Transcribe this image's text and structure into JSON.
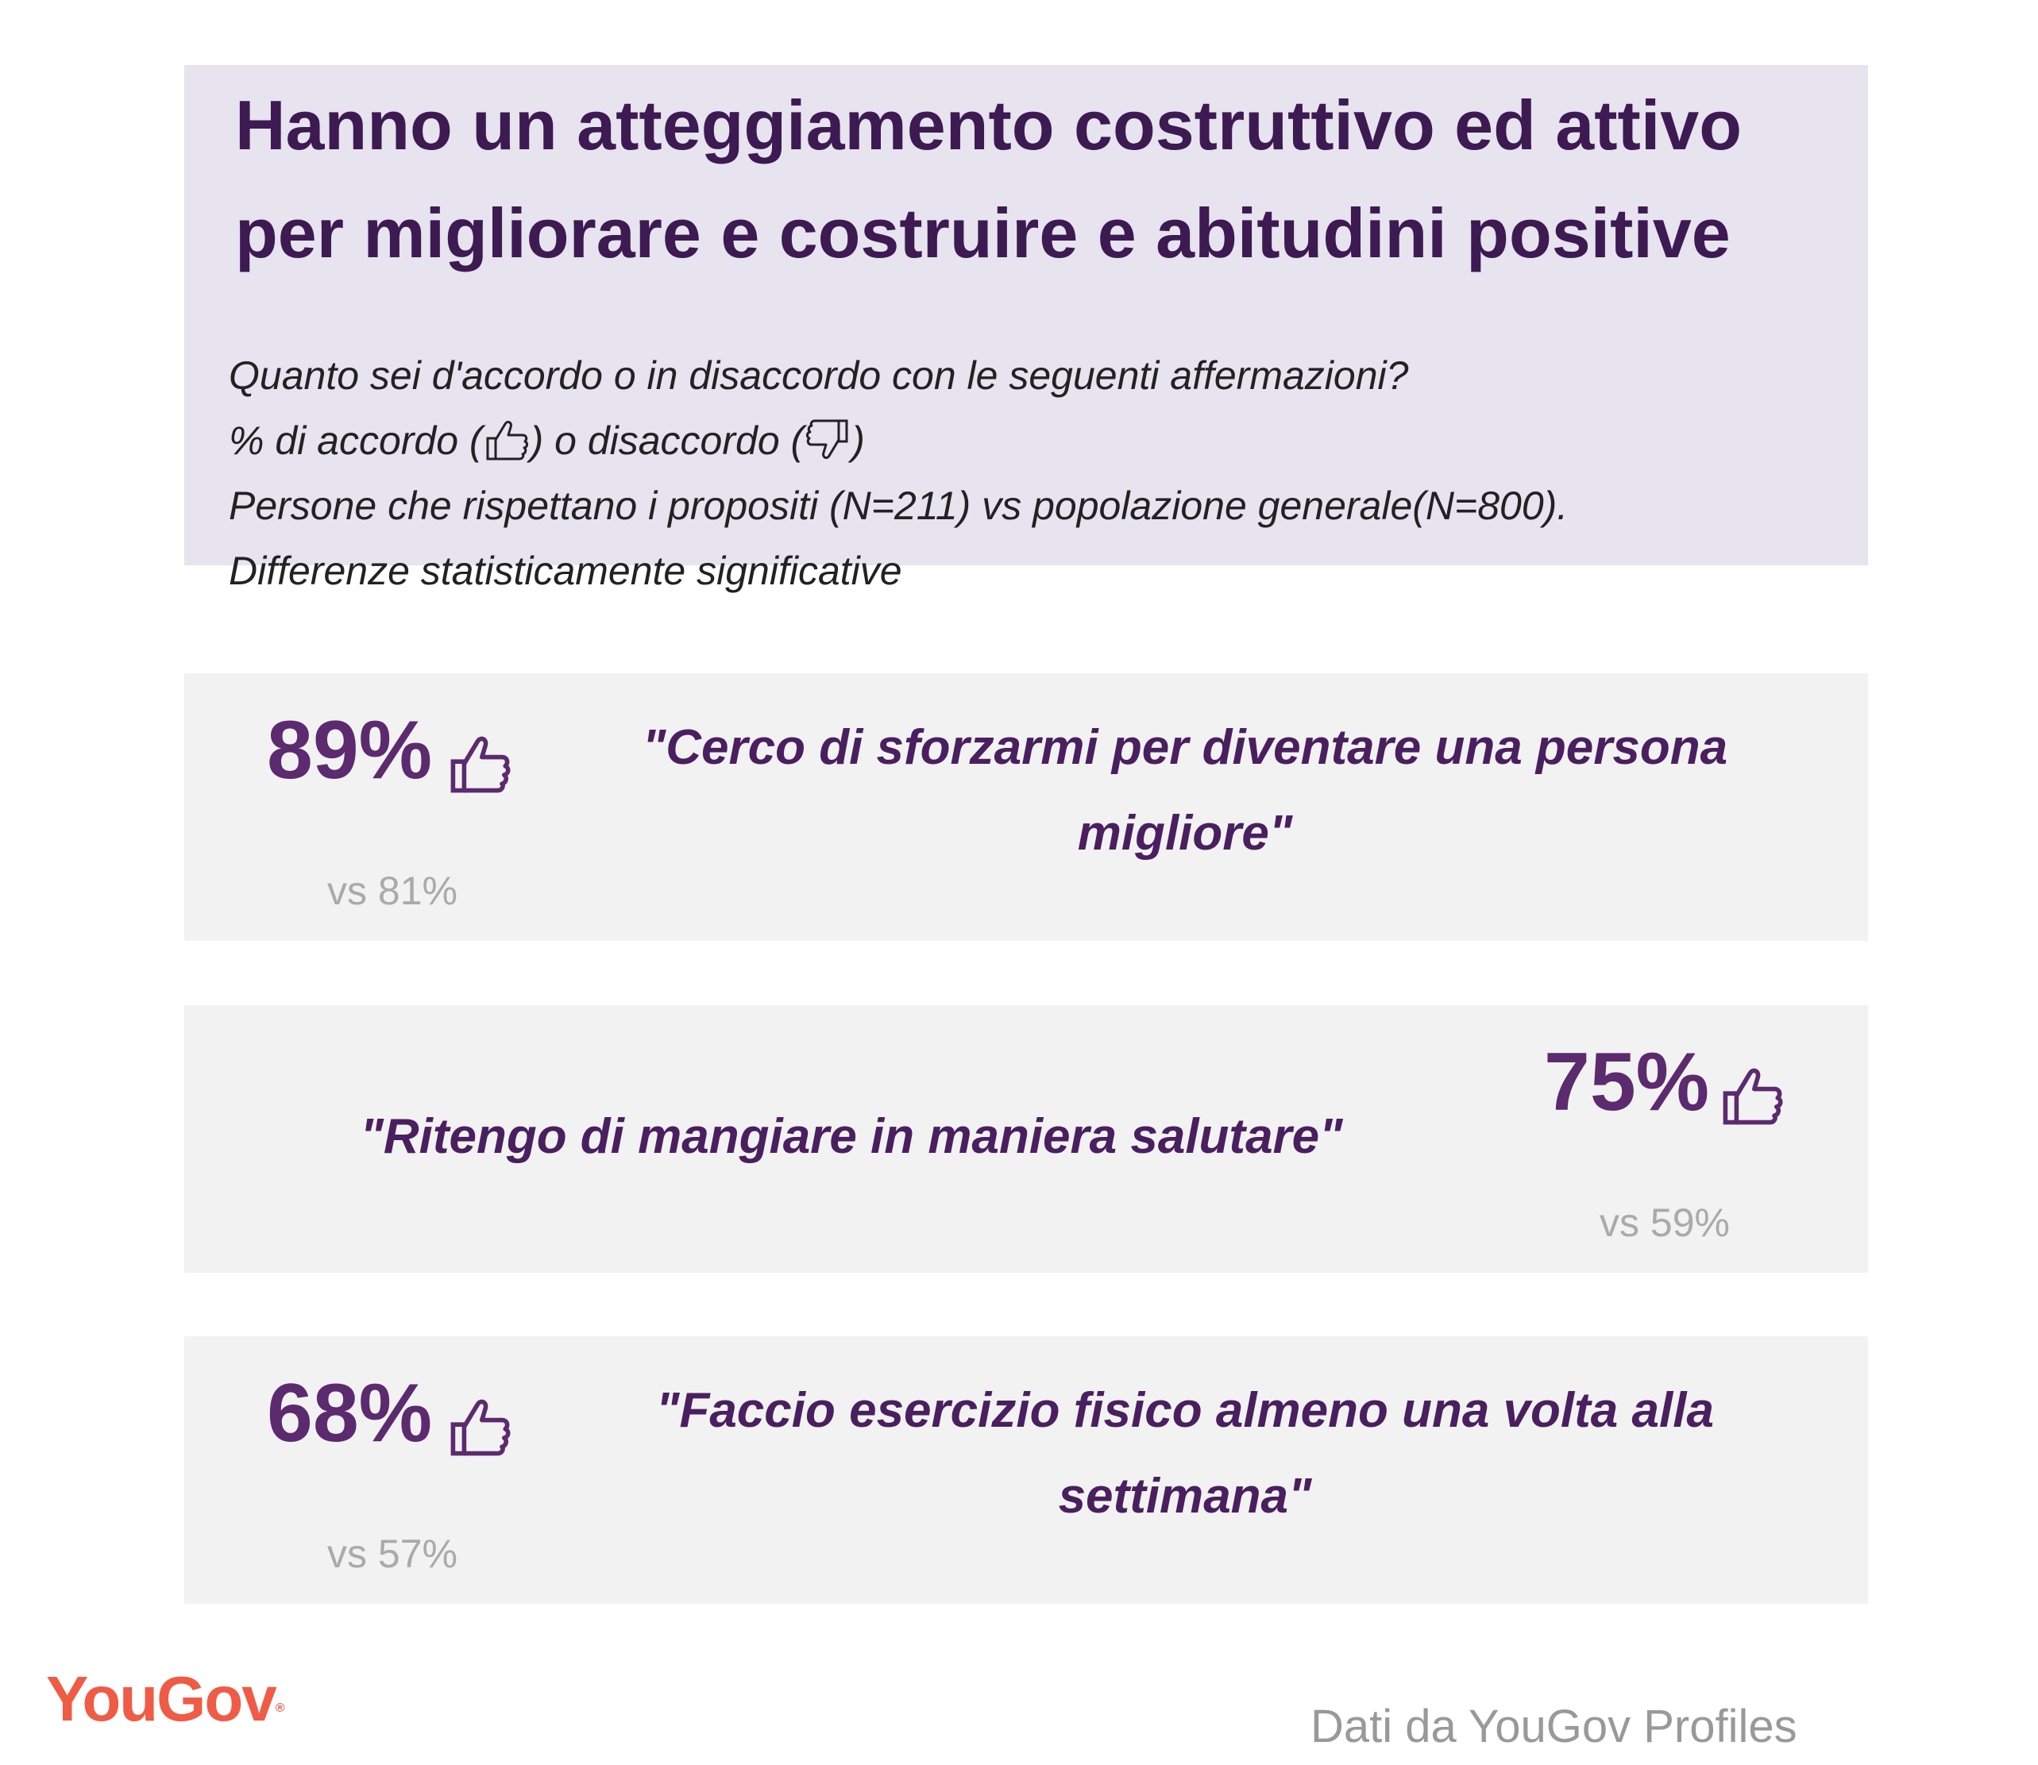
{
  "header": {
    "title": "Hanno un atteggiamento costruttivo ed attivo per migliorare e costruire e abitudini positive",
    "question": "Quanto sei d'accordo o in disaccordo con le seguenti affermazioni?",
    "legend_prefix": "% di accordo (",
    "legend_mid": ") o disaccordo (",
    "legend_suffix": ")",
    "sample": "Persone che rispettano i propositi (N=211) vs popolazione generale(N=800).",
    "note": "Differenze statisticamente significative"
  },
  "items": [
    {
      "percent": "89%",
      "vs": "vs 81%",
      "quote": "\"Cerco di sforzarmi per diventare una persona migliore\"",
      "icon": "thumbs-up-icon"
    },
    {
      "percent": "75%",
      "vs": "vs 59%",
      "quote": "\"Ritengo di mangiare in maniera salutare\"",
      "icon": "thumbs-up-icon"
    },
    {
      "percent": "68%",
      "vs": "vs 57%",
      "quote": "\"Faccio esercizio fisico almeno una volta alla settimana\"",
      "icon": "thumbs-up-icon"
    }
  ],
  "footer": {
    "logo": "YouGov",
    "logo_mark": "®",
    "source": "Dati da YouGov Profiles"
  },
  "colors": {
    "header_bg": "#e7e3ef",
    "card_bg": "#f2f2f2",
    "title": "#3d1a52",
    "accent": "#5c2a6e",
    "logo": "#ef5b45",
    "muted": "#aaaaaa"
  }
}
